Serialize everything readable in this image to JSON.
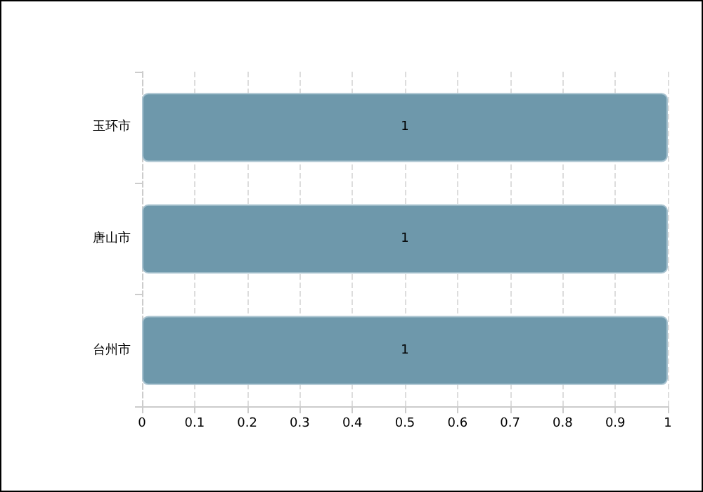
{
  "chart_data": {
    "type": "bar",
    "orientation": "horizontal",
    "categories": [
      "玉环市",
      "唐山市",
      "台州市"
    ],
    "values": [
      1,
      1,
      1
    ],
    "color": "#6e98ab",
    "xlim": [
      0,
      1
    ],
    "xticks": [
      0,
      0.1,
      0.2,
      0.3,
      0.4,
      0.5,
      0.6,
      0.7,
      0.8,
      0.9,
      1
    ],
    "grid": "x",
    "data_labels": true
  }
}
